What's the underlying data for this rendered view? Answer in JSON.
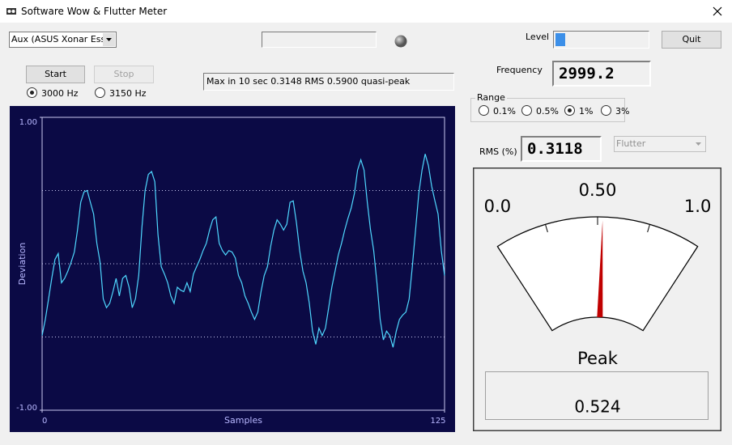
{
  "window": {
    "title": "Software Wow & Flutter Meter"
  },
  "device_select": "Aux (ASUS Xonar Essei",
  "level_label": "Level",
  "quit": "Quit",
  "start": "Start",
  "stop": "Stop",
  "frequency_options": {
    "options": [
      "3000 Hz",
      "3150 Hz"
    ],
    "selected": 0
  },
  "status": "Max in 10 sec 0.3148 RMS 0.5900 quasi-peak",
  "frequency_label": "Frequency",
  "frequency": "2999.2",
  "range": {
    "label": "Range",
    "options": [
      "0.1%",
      "0.5%",
      "1%",
      "3%"
    ],
    "selected": 2
  },
  "rms_label": "RMS (%)",
  "rms": "0.3118",
  "mode_select": "Flutter",
  "meter": {
    "lim": [
      0,
      1
    ],
    "ticks": [
      {
        "value": 0,
        "label": "0.0"
      },
      {
        "value": 0.5,
        "label": "0.50"
      },
      {
        "value": 1,
        "label": "1.0"
      }
    ],
    "peak_label": "Peak",
    "value": 0.524
  },
  "chart_data": {
    "type": "line",
    "xlabel": "Samples",
    "ylabel": "Deviation",
    "x": [
      0,
      1,
      2,
      3,
      4,
      5,
      6,
      7,
      8,
      9,
      10,
      11,
      12,
      13,
      14,
      15,
      16,
      17,
      18,
      19,
      20,
      21,
      22,
      23,
      24,
      25,
      26,
      27,
      28,
      29,
      30,
      31,
      32,
      33,
      34,
      35,
      36,
      37,
      38,
      39,
      40,
      41,
      42,
      43,
      44,
      45,
      46,
      47,
      48,
      49,
      50,
      51,
      52,
      53,
      54,
      55,
      56,
      57,
      58,
      59,
      60,
      61,
      62,
      63,
      64,
      65,
      66,
      67,
      68,
      69,
      70,
      71,
      72,
      73,
      74,
      75,
      76,
      77,
      78,
      79,
      80,
      81,
      82,
      83,
      84,
      85,
      86,
      87,
      88,
      89,
      90,
      91,
      92,
      93,
      94,
      95,
      96,
      97,
      98,
      99,
      100,
      101,
      102,
      103,
      104,
      105,
      106,
      107,
      108,
      109,
      110,
      111,
      112,
      113,
      114,
      115,
      116,
      117,
      118,
      119,
      120,
      121,
      122,
      123,
      124,
      125
    ],
    "series": [
      {
        "color": "#4fd8ff",
        "values": [
          -0.49,
          -0.38,
          -0.24,
          -0.1,
          0.03,
          0.07,
          -0.13,
          -0.1,
          -0.05,
          0.01,
          0.08,
          0.23,
          0.42,
          0.49,
          0.5,
          0.42,
          0.34,
          0.14,
          0.01,
          -0.24,
          -0.3,
          -0.27,
          -0.19,
          -0.1,
          -0.22,
          -0.1,
          -0.08,
          -0.16,
          -0.3,
          -0.24,
          -0.08,
          0.25,
          0.5,
          0.61,
          0.63,
          0.56,
          0.2,
          -0.02,
          -0.07,
          -0.13,
          -0.22,
          -0.27,
          -0.16,
          -0.18,
          -0.19,
          -0.13,
          -0.19,
          -0.07,
          -0.02,
          0.03,
          0.09,
          0.14,
          0.23,
          0.3,
          0.32,
          0.14,
          0.09,
          0.06,
          0.09,
          0.08,
          0.04,
          -0.08,
          -0.13,
          -0.22,
          -0.27,
          -0.33,
          -0.38,
          -0.33,
          -0.19,
          -0.08,
          -0.02,
          0.12,
          0.23,
          0.3,
          0.27,
          0.23,
          0.27,
          0.42,
          0.43,
          0.28,
          0.09,
          -0.05,
          -0.13,
          -0.27,
          -0.46,
          -0.55,
          -0.44,
          -0.49,
          -0.44,
          -0.3,
          -0.16,
          -0.05,
          0.06,
          0.14,
          0.23,
          0.31,
          0.38,
          0.48,
          0.64,
          0.71,
          0.64,
          0.42,
          0.23,
          0.09,
          -0.13,
          -0.38,
          -0.52,
          -0.46,
          -0.49,
          -0.57,
          -0.46,
          -0.38,
          -0.35,
          -0.33,
          -0.24,
          -0.02,
          0.23,
          0.48,
          0.64,
          0.75,
          0.67,
          0.53,
          0.43,
          0.34,
          0.09,
          -0.08
        ]
      }
    ],
    "xlim": [
      0,
      125
    ],
    "xticks": [
      0,
      125
    ],
    "ylim": [
      -1,
      1
    ],
    "yticks": [
      {
        "value": 1,
        "label": "1.00"
      },
      {
        "value": -1,
        "label": "-1.00"
      }
    ],
    "grid_lines": [
      -0.5,
      0,
      0.5
    ]
  }
}
